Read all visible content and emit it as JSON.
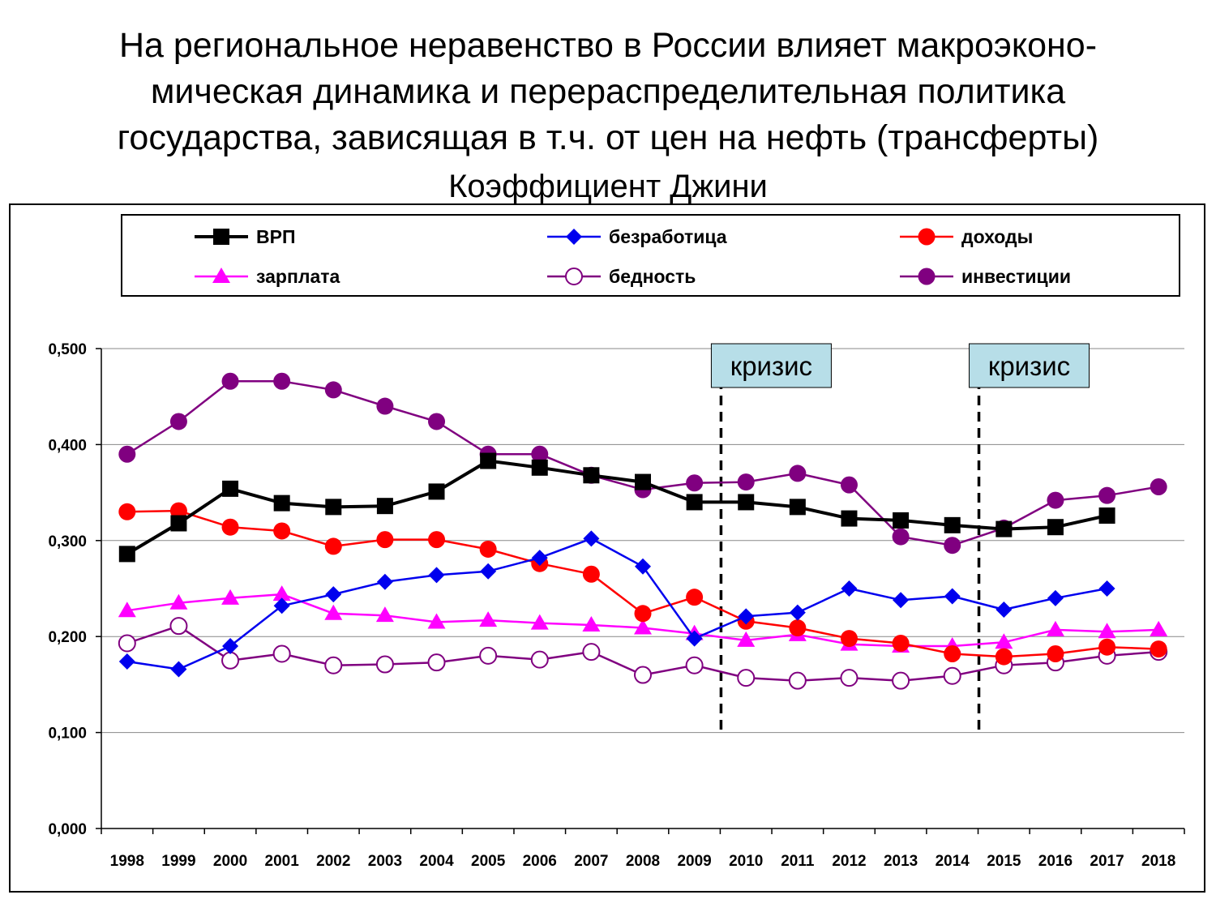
{
  "title_lines": [
    "На региональное неравенство в России влияет макроэконо-",
    "мическая динамика и перераспределительная политика",
    "государства, зависящая в т.ч. от цен на нефть (трансферты)"
  ],
  "subtitle": "Коэффициент Джини",
  "colors": {
    "vrp": "#000000",
    "unemployment": "#0000ee",
    "income": "#ff0000",
    "salary": "#ff00ff",
    "poverty": "#800080",
    "investment": "#800080",
    "crisis_box": "#b7dee8"
  },
  "chart_data": {
    "type": "line",
    "x": [
      "1998",
      "1999",
      "2000",
      "2001",
      "2002",
      "2003",
      "2004",
      "2005",
      "2006",
      "2007",
      "2008",
      "2009",
      "2010",
      "2011",
      "2012",
      "2013",
      "2014",
      "2015",
      "2016",
      "2017",
      "2018"
    ],
    "ytick_labels": [
      "0,000",
      "0,100",
      "0,200",
      "0,300",
      "0,400",
      "0,500"
    ],
    "ylim": [
      0,
      0.5
    ],
    "grid": "horizontal",
    "legend_position": "top",
    "series": [
      {
        "key": "vrp",
        "name": "ВРП",
        "marker": "square",
        "values": [
          0.286,
          0.318,
          0.354,
          0.339,
          0.335,
          0.336,
          0.351,
          0.383,
          0.376,
          0.368,
          0.361,
          0.34,
          0.34,
          0.335,
          0.323,
          0.321,
          0.316,
          0.312,
          0.314,
          0.326,
          null
        ]
      },
      {
        "key": "unemployment",
        "name": "безработица",
        "marker": "diamond",
        "values": [
          0.174,
          0.166,
          0.19,
          0.232,
          0.244,
          0.257,
          0.264,
          0.268,
          0.282,
          0.302,
          0.273,
          0.198,
          0.221,
          0.225,
          0.25,
          0.238,
          0.242,
          0.228,
          0.24,
          0.25,
          null
        ]
      },
      {
        "key": "income",
        "name": "доходы",
        "marker": "circle",
        "values": [
          0.33,
          0.331,
          0.314,
          0.31,
          0.294,
          0.301,
          0.301,
          0.291,
          0.276,
          0.265,
          0.224,
          0.241,
          0.216,
          0.209,
          0.198,
          0.193,
          0.182,
          0.179,
          0.182,
          0.189,
          0.187
        ]
      },
      {
        "key": "salary",
        "name": "зарплата",
        "marker": "triangle",
        "values": [
          0.227,
          0.235,
          0.24,
          0.244,
          0.224,
          0.222,
          0.215,
          0.217,
          0.214,
          0.212,
          0.209,
          0.203,
          0.196,
          0.202,
          0.192,
          0.19,
          0.19,
          0.194,
          0.207,
          0.205,
          0.207
        ]
      },
      {
        "key": "poverty",
        "name": "бедность",
        "marker": "open-circle",
        "values": [
          0.193,
          0.211,
          0.175,
          0.182,
          0.17,
          0.171,
          0.173,
          0.18,
          0.176,
          0.184,
          0.16,
          0.17,
          0.157,
          0.154,
          0.157,
          0.154,
          0.159,
          0.17,
          0.173,
          0.18,
          0.184
        ]
      },
      {
        "key": "investment",
        "name": "инвестиции",
        "marker": "circle",
        "values": [
          0.39,
          0.424,
          0.466,
          0.466,
          0.457,
          0.44,
          0.424,
          0.39,
          0.39,
          0.368,
          0.353,
          0.36,
          0.361,
          0.37,
          0.358,
          0.304,
          0.295,
          0.313,
          0.342,
          0.347,
          0.356
        ]
      }
    ],
    "annotations": [
      {
        "text": "кризис",
        "year": "2009"
      },
      {
        "text": "кризис",
        "year": "2014"
      }
    ]
  }
}
